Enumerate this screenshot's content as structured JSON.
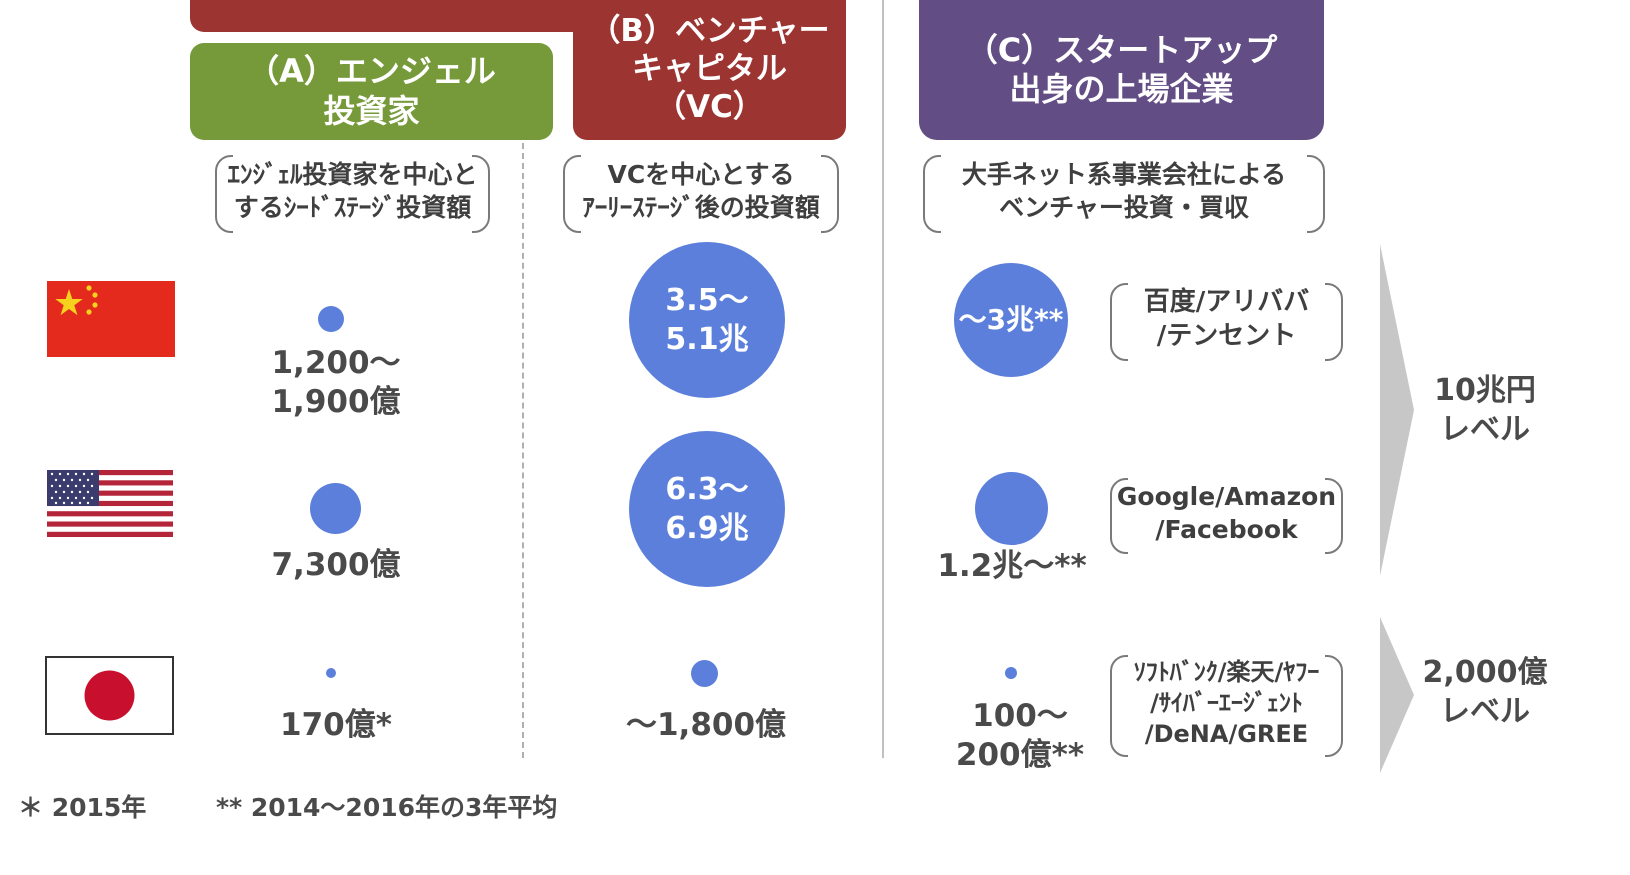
{
  "colors": {
    "green": "#769a3a",
    "red": "#9c3432",
    "purple": "#624d85",
    "dot_blue": "#5b7fdb",
    "arrow_gray": "#c7c7c7"
  },
  "headers": {
    "a": {
      "line1": "（A）エンジェル",
      "line2": "投資家"
    },
    "b": {
      "line1": "（B）ベンチャー",
      "line2": "キャピタル",
      "line3": "（VC）"
    },
    "c": {
      "line1": "（C）スタートアップ",
      "line2": "出身の上場企業"
    }
  },
  "subtitles": {
    "a": {
      "line1": "ｴﾝｼﾞｪﾙ投資家を中心と",
      "line2": "するｼｰﾄﾞｽﾃｰｼﾞ投資額"
    },
    "b": {
      "line1": "VCを中心とする",
      "line2": "ｱｰﾘｰｽﾃｰｼﾞ後の投資額"
    },
    "c": {
      "line1": "大手ネット系事業会社による",
      "line2": "ベンチャー投資・買収"
    }
  },
  "countries": [
    {
      "flag": "china-flag"
    },
    {
      "flag": "usa-flag"
    },
    {
      "flag": "japan-flag"
    }
  ],
  "values": {
    "a": [
      {
        "line1": "1,200～",
        "line2": "1,900億"
      },
      {
        "line1": "7,300億"
      },
      {
        "line1": "170億*"
      }
    ],
    "b": [
      {
        "line1": "3.5～",
        "line2": "5.1兆"
      },
      {
        "line1": "6.3～",
        "line2": "6.9兆"
      },
      {
        "line1": "～1,800億"
      }
    ],
    "c": [
      {
        "line1": "～3兆**"
      },
      {
        "line1": "1.2兆～**"
      },
      {
        "line1": "100～",
        "line2": "200億**"
      }
    ]
  },
  "companies": [
    {
      "line1": "百度/アリババ",
      "line2": "/テンセント"
    },
    {
      "line1": "Google/Amazon",
      "line2": "/Facebook"
    },
    {
      "line1": "ｿﾌﾄﾊﾞﾝｸ/楽天/ﾔﾌｰ",
      "line2": "/ｻｲﾊﾞｰｴｰｼﾞｪﾝﾄ",
      "line3": "/DeNA/GREE"
    }
  ],
  "levels": [
    {
      "line1": "10兆円",
      "line2": "レベル"
    },
    {
      "line1": "2,000億",
      "line2": "レベル"
    }
  ],
  "footnotes": {
    "note1": "＊ 2015年",
    "note2": "** 2014～2016年の3年平均"
  }
}
